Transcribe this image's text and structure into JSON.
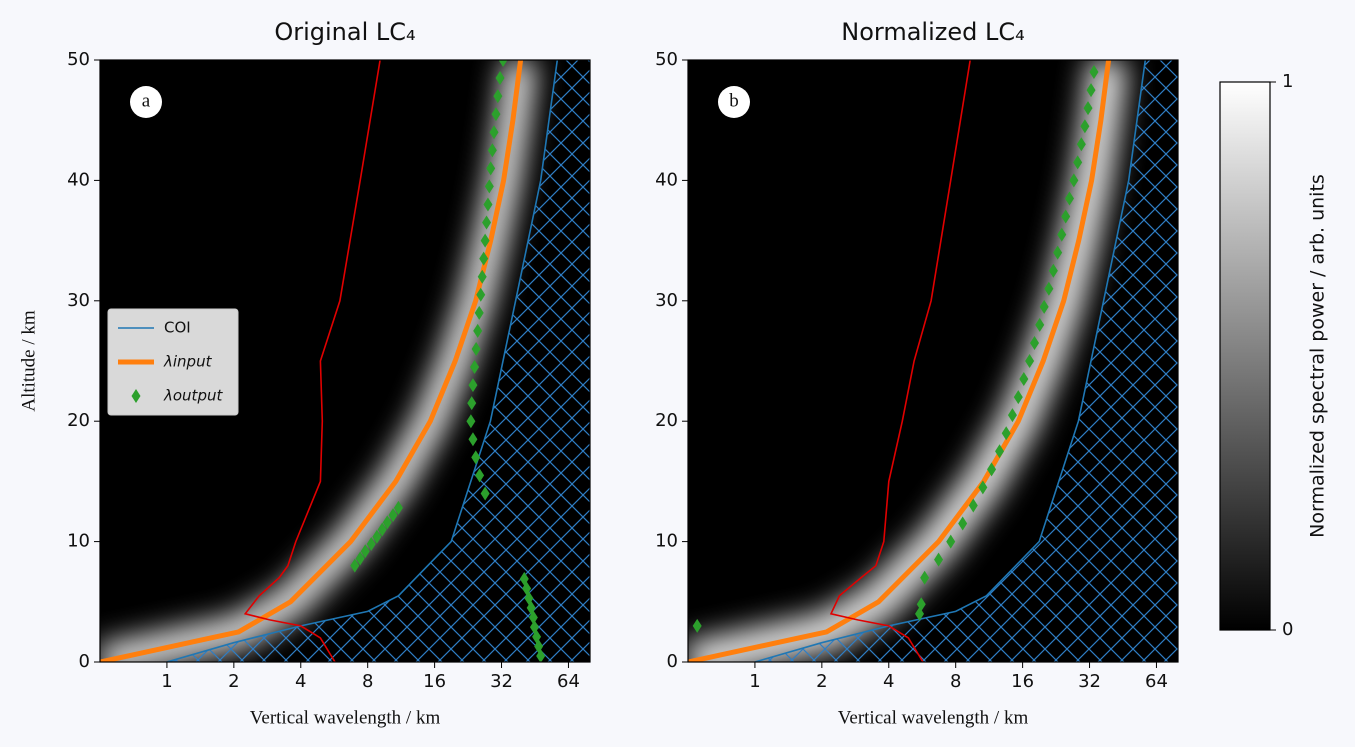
{
  "chart_data": [
    {
      "type": "line",
      "title": "Original LC₄",
      "panel_label": "a",
      "xlabel": "Vertical wavelength / km",
      "ylabel": "Altitude / km",
      "xscale": "log2",
      "xlim": [
        0.5,
        80
      ],
      "xticks": [
        1,
        2,
        4,
        8,
        16,
        32,
        64
      ],
      "ylim": [
        0,
        50
      ],
      "yticks": [
        0,
        10,
        20,
        30,
        40,
        50
      ],
      "legend": "center left",
      "series": [
        {
          "name": "COI",
          "color": "#1f77b4",
          "hatch": "x",
          "x": [
            1,
            2,
            4,
            8,
            11,
            19,
            28.5,
            37,
            48,
            57
          ],
          "y": [
            0,
            1.6,
            3,
            4.2,
            5.5,
            10,
            20,
            30,
            40,
            50
          ]
        },
        {
          "name": "λinput",
          "color": "#ff7f0e",
          "x": [
            0.5,
            2.1,
            3.6,
            6.7,
            10.7,
            15.3,
            19.8,
            24.5,
            28.6,
            32.7,
            36,
            39
          ],
          "y": [
            0,
            2.5,
            5,
            10,
            15,
            20,
            25,
            30,
            35,
            40,
            45,
            50
          ]
        },
        {
          "name": "λoutput",
          "color": "#2ca02c",
          "marker": "D",
          "x": [
            7.0,
            7.4,
            7.8,
            8.3,
            8.8,
            9.3,
            9.8,
            10.4,
            11.0,
            48,
            47,
            46,
            45,
            44.5,
            43.5,
            42.5,
            41.5,
            40.5,
            27,
            25.5,
            24.5,
            23.8,
            23.3,
            23.5,
            23.8,
            24.2,
            24.6,
            25,
            25.4,
            25.8,
            26.2,
            26.6,
            27,
            27.4,
            27.8,
            28.2,
            28.6,
            29.1,
            29.6,
            30.2,
            30.8,
            31.5,
            32.5
          ],
          "y": [
            8,
            8.6,
            9.2,
            9.8,
            10.4,
            11,
            11.6,
            12.2,
            12.8,
            0.5,
            1.3,
            2.1,
            2.9,
            3.7,
            4.5,
            5.3,
            6.1,
            6.9,
            14,
            15.5,
            17,
            18.5,
            20,
            21.5,
            23,
            24.5,
            26,
            27.5,
            29,
            30.5,
            32,
            33.5,
            35,
            36.5,
            38,
            39.5,
            41,
            42.5,
            44,
            45.5,
            47,
            48.5,
            50
          ]
        },
        {
          "color": "#e00000",
          "x": [
            9.1,
            7.4,
            6,
            4.9,
            5,
            4.9,
            3.8,
            3.5,
            3.2,
            2.6,
            2.25,
            2.9,
            4,
            4.9,
            5.7
          ],
          "y": [
            50,
            40,
            30,
            25,
            20,
            15,
            10,
            8,
            7,
            5.5,
            4,
            3.5,
            3,
            2,
            0
          ]
        }
      ]
    },
    {
      "type": "line",
      "title": "Normalized LC₄",
      "panel_label": "b",
      "xlabel": "Vertical wavelength / km",
      "xscale": "log2",
      "xlim": [
        0.5,
        80
      ],
      "xticks": [
        1,
        2,
        4,
        8,
        16,
        32,
        64
      ],
      "ylim": [
        0,
        50
      ],
      "yticks": [
        0,
        10,
        20,
        30,
        40,
        50
      ],
      "series": [
        {
          "color": "#1f77b4",
          "hatch": "x",
          "x": [
            1,
            2,
            4,
            8,
            11,
            19,
            28.5,
            37,
            48,
            57
          ],
          "y": [
            0,
            1.6,
            3,
            4.2,
            5.5,
            10,
            20,
            30,
            40,
            50
          ]
        },
        {
          "color": "#ff7f0e",
          "x": [
            0.5,
            2.1,
            3.6,
            6.7,
            10.7,
            15.3,
            19.8,
            24.5,
            28.6,
            32.7,
            36,
            39
          ],
          "y": [
            0,
            2.5,
            5,
            10,
            15,
            20,
            25,
            30,
            35,
            40,
            45,
            50
          ]
        },
        {
          "color": "#2ca02c",
          "marker": "D",
          "x": [
            0.55,
            5.5,
            5.6,
            5.8,
            6.7,
            7.6,
            8.6,
            9.6,
            10.6,
            11.6,
            12.6,
            13.5,
            14.4,
            15.3,
            16.2,
            17.2,
            18.1,
            19.1,
            20,
            21,
            22,
            23,
            24,
            25,
            26,
            27.2,
            28.3,
            29.4,
            30.5,
            31.5,
            32.5,
            33.5
          ],
          "y": [
            3,
            4,
            4.8,
            7,
            8.5,
            10,
            11.5,
            13,
            14.5,
            16,
            17.5,
            19,
            20.5,
            22,
            23.5,
            25,
            26.5,
            28,
            29.5,
            31,
            32.5,
            34,
            35.5,
            37,
            38.5,
            40,
            41.5,
            43,
            44.5,
            46,
            47.5,
            49
          ]
        },
        {
          "color": "#e00000",
          "x": [
            9.3,
            7.6,
            6.2,
            5.2,
            4.6,
            4.0,
            3.8,
            3.5,
            3.0,
            2.4,
            2.2,
            2.9,
            4.0,
            4.9,
            5.7
          ],
          "y": [
            50,
            40,
            30,
            25,
            20,
            15,
            10,
            8,
            7,
            5.5,
            4,
            3.5,
            3,
            2,
            0
          ]
        }
      ]
    },
    {
      "type": "colorbar",
      "label": "Normalized spectral power / arb. units",
      "ylim": [
        0,
        1
      ],
      "yticks": [
        0,
        1
      ],
      "colors": [
        "#000000",
        "#ffffff"
      ]
    }
  ]
}
